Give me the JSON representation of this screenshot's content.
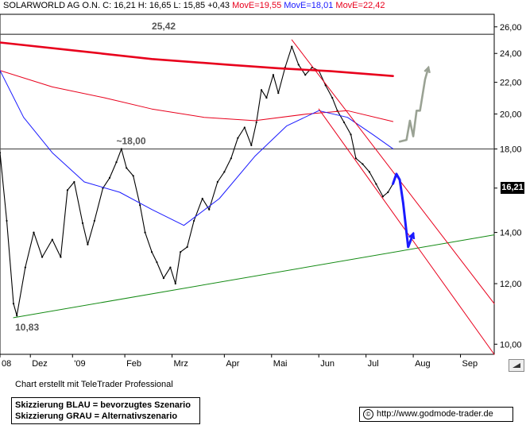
{
  "header": {
    "name": "SOLARWORLD AG O.N.",
    "quote": "C: 16,21 H: 16,65 L: 15,85 +0,43",
    "ma1": "MovE=19,55",
    "ma2": "MovE=18,01",
    "ma3": "MovE=22,42"
  },
  "colors": {
    "price": "#000000",
    "ma_red": "#e8001c",
    "ma_blue": "#1a1aff",
    "trend_green": "#138a13",
    "channel_red": "#e8001c",
    "blue_scenario": "#1a1aff",
    "grey_scenario": "#9aa294",
    "resistance": "#555555"
  },
  "icons": {
    "copyright": "copyright-icon",
    "scroll": "scroll-arrow-icon"
  },
  "footer": {
    "credit": "Chart erstellt mit TeleTrader Professional",
    "legend_blue": "Skizzierung BLAU = bevorzugtes Szenario",
    "legend_grey": "Skizzierung GRAU = Alternativszenario",
    "url": "http://www.godmode-trader.de",
    "copyright_symbol": "©"
  },
  "chart_data": {
    "type": "line",
    "y_scale": "log",
    "ylim": [
      9.7,
      27.0
    ],
    "y_ticks": [
      10,
      12,
      14,
      16,
      18,
      20,
      22,
      24,
      26
    ],
    "y_tick_labels": [
      "10,00",
      "12,00",
      "14,00",
      "16,00",
      "18,00",
      "20,00",
      "22,00",
      "24,00",
      "26,00"
    ],
    "x_range": [
      "2008-12-01",
      "2009-09-20"
    ],
    "x_ticks": [
      {
        "date": "2008-12-01",
        "label": "08"
      },
      {
        "date": "2008-12-19",
        "label": "Dez"
      },
      {
        "date": "2009-01-13",
        "label": "'09"
      },
      {
        "date": "2009-02-13",
        "label": "Feb"
      },
      {
        "date": "2009-03-13",
        "label": "Mrz"
      },
      {
        "date": "2009-04-13",
        "label": "Apr"
      },
      {
        "date": "2009-05-11",
        "label": "Mai"
      },
      {
        "date": "2009-06-08",
        "label": "Jun"
      },
      {
        "date": "2009-07-06",
        "label": "Jul"
      },
      {
        "date": "2009-08-03",
        "label": "Aug"
      },
      {
        "date": "2009-08-31",
        "label": "Sep"
      }
    ],
    "last_price_label": "16,21",
    "last_price": 16.21,
    "resistance_lines": [
      25.42,
      18.0
    ],
    "annotations": [
      {
        "text": "25,42",
        "date": "2009-03-01",
        "value": 25.42
      },
      {
        "text": "~18,00",
        "date": "2009-02-08",
        "value": 18.0
      },
      {
        "text": "10,83",
        "date": "2008-12-10",
        "value": 10.83
      }
    ],
    "series": [
      {
        "name": "SOLARWORLD AG O.N.",
        "role": "price",
        "points": [
          [
            "2008-12-01",
            17.8
          ],
          [
            "2008-12-05",
            14.5
          ],
          [
            "2008-12-09",
            11.3
          ],
          [
            "2008-12-11",
            10.9
          ],
          [
            "2008-12-16",
            12.6
          ],
          [
            "2008-12-21",
            14.0
          ],
          [
            "2008-12-26",
            13.0
          ],
          [
            "2009-01-01",
            13.7
          ],
          [
            "2009-01-06",
            13.0
          ],
          [
            "2009-01-10",
            15.9
          ],
          [
            "2009-01-14",
            16.3
          ],
          [
            "2009-01-19",
            14.4
          ],
          [
            "2009-01-22",
            13.5
          ],
          [
            "2009-01-26",
            14.5
          ],
          [
            "2009-01-31",
            16.0
          ],
          [
            "2009-02-04",
            16.5
          ],
          [
            "2009-02-08",
            17.3
          ],
          [
            "2009-02-11",
            18.0
          ],
          [
            "2009-02-14",
            17.0
          ],
          [
            "2009-02-18",
            16.6
          ],
          [
            "2009-02-22",
            15.2
          ],
          [
            "2009-02-25",
            14.0
          ],
          [
            "2009-03-01",
            13.2
          ],
          [
            "2009-03-04",
            12.8
          ],
          [
            "2009-03-08",
            12.2
          ],
          [
            "2009-03-12",
            12.6
          ],
          [
            "2009-03-15",
            12.0
          ],
          [
            "2009-03-18",
            13.2
          ],
          [
            "2009-03-22",
            13.4
          ],
          [
            "2009-03-26",
            14.5
          ],
          [
            "2009-03-31",
            15.5
          ],
          [
            "2009-04-04",
            15.0
          ],
          [
            "2009-04-09",
            16.3
          ],
          [
            "2009-04-13",
            16.8
          ],
          [
            "2009-04-17",
            17.5
          ],
          [
            "2009-04-21",
            18.6
          ],
          [
            "2009-04-25",
            19.2
          ],
          [
            "2009-04-29",
            18.2
          ],
          [
            "2009-05-02",
            19.5
          ],
          [
            "2009-05-05",
            21.5
          ],
          [
            "2009-05-08",
            21.0
          ],
          [
            "2009-05-12",
            22.5
          ],
          [
            "2009-05-15",
            21.3
          ],
          [
            "2009-05-19",
            23.0
          ],
          [
            "2009-05-23",
            24.5
          ],
          [
            "2009-05-27",
            23.2
          ],
          [
            "2009-05-31",
            22.5
          ],
          [
            "2009-06-04",
            23.0
          ],
          [
            "2009-06-08",
            22.8
          ],
          [
            "2009-06-12",
            21.8
          ],
          [
            "2009-06-16",
            21.0
          ],
          [
            "2009-06-19",
            20.2
          ],
          [
            "2009-06-23",
            19.5
          ],
          [
            "2009-06-27",
            18.8
          ],
          [
            "2009-06-30",
            17.5
          ],
          [
            "2009-07-04",
            17.2
          ],
          [
            "2009-07-08",
            16.8
          ],
          [
            "2009-07-12",
            16.2
          ],
          [
            "2009-07-16",
            15.6
          ],
          [
            "2009-07-19",
            15.8
          ],
          [
            "2009-07-22",
            16.21
          ]
        ]
      },
      {
        "name": "MovE=22,42",
        "role": "ma_long",
        "points": [
          [
            "2008-12-01",
            24.8
          ],
          [
            "2009-01-15",
            24.2
          ],
          [
            "2009-03-01",
            23.6
          ],
          [
            "2009-04-15",
            23.2
          ],
          [
            "2009-05-15",
            22.95
          ],
          [
            "2009-06-15",
            22.75
          ],
          [
            "2009-07-22",
            22.42
          ]
        ]
      },
      {
        "name": "MovE=19,55",
        "role": "ma_mid",
        "points": [
          [
            "2008-12-01",
            22.8
          ],
          [
            "2009-01-01",
            21.7
          ],
          [
            "2009-02-01",
            21.0
          ],
          [
            "2009-03-01",
            20.3
          ],
          [
            "2009-04-01",
            19.8
          ],
          [
            "2009-05-01",
            19.6
          ],
          [
            "2009-06-01",
            20.0
          ],
          [
            "2009-06-25",
            20.2
          ],
          [
            "2009-07-22",
            19.55
          ]
        ]
      },
      {
        "name": "MovE=18,01",
        "role": "ma_short",
        "points": [
          [
            "2008-12-01",
            22.8
          ],
          [
            "2008-12-15",
            19.8
          ],
          [
            "2009-01-01",
            17.8
          ],
          [
            "2009-01-20",
            16.3
          ],
          [
            "2009-02-10",
            15.8
          ],
          [
            "2009-03-01",
            15.0
          ],
          [
            "2009-03-20",
            14.3
          ],
          [
            "2009-04-10",
            15.5
          ],
          [
            "2009-05-01",
            17.6
          ],
          [
            "2009-05-20",
            19.3
          ],
          [
            "2009-06-08",
            20.2
          ],
          [
            "2009-06-25",
            19.8
          ],
          [
            "2009-07-10",
            18.8
          ],
          [
            "2009-07-22",
            18.01
          ]
        ]
      },
      {
        "name": "",
        "role": "trend_up",
        "points": [
          [
            "2008-12-09",
            10.83
          ],
          [
            "2009-09-20",
            13.9
          ]
        ]
      },
      {
        "name": "",
        "role": "channel_upper",
        "points": [
          [
            "2009-05-23",
            25.0
          ],
          [
            "2009-09-20",
            11.3
          ]
        ]
      },
      {
        "name": "",
        "role": "channel_lower",
        "points": [
          [
            "2009-06-08",
            20.3
          ],
          [
            "2009-09-20",
            9.7
          ]
        ]
      },
      {
        "name": "",
        "role": "ma_long_gap",
        "points": [
          [
            "2009-07-22",
            22.42
          ]
        ]
      },
      {
        "name": "",
        "role": "blue_scenario",
        "points": [
          [
            "2009-07-22",
            16.21
          ],
          [
            "2009-07-24",
            16.7
          ],
          [
            "2009-07-26",
            16.4
          ],
          [
            "2009-07-28",
            15.3
          ],
          [
            "2009-07-30",
            14.0
          ],
          [
            "2009-07-31",
            13.4
          ],
          [
            "2009-08-03",
            13.95
          ]
        ]
      },
      {
        "name": "",
        "role": "grey_scenario",
        "points": [
          [
            "2009-07-26",
            18.4
          ],
          [
            "2009-07-30",
            18.5
          ],
          [
            "2009-08-01",
            19.6
          ],
          [
            "2009-08-03",
            18.7
          ],
          [
            "2009-08-05",
            20.2
          ],
          [
            "2009-08-07",
            20.2
          ],
          [
            "2009-08-10",
            22.2
          ],
          [
            "2009-08-12",
            23.0
          ]
        ]
      }
    ]
  }
}
